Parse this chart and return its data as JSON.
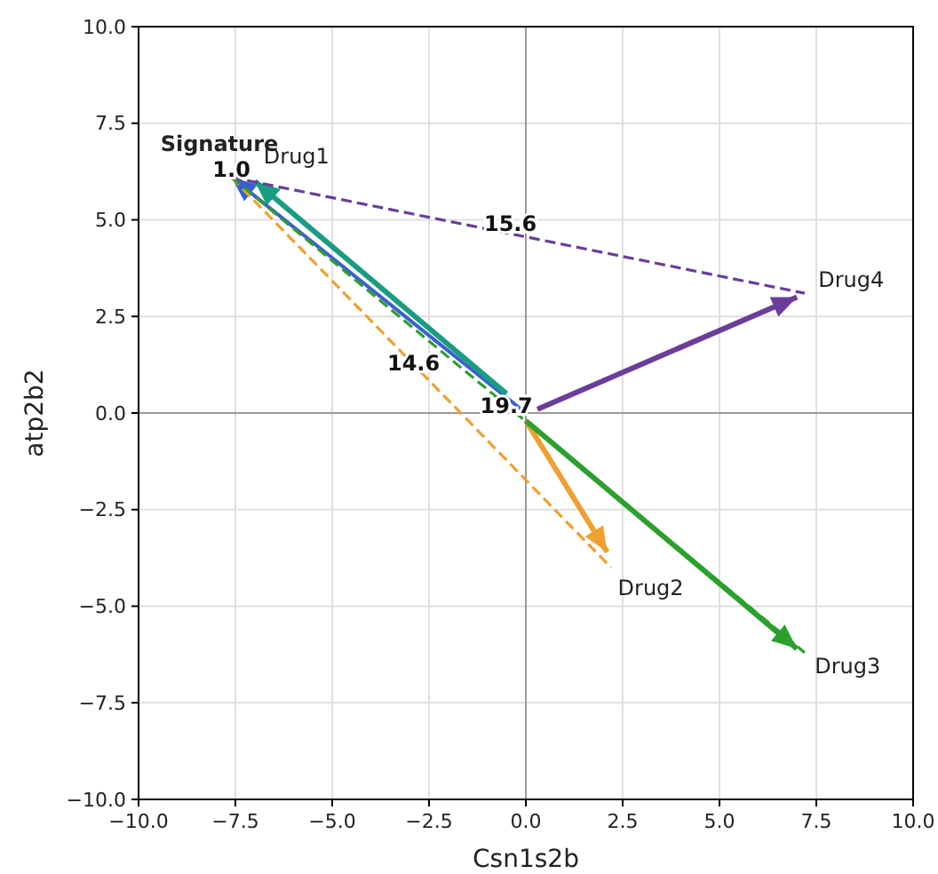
{
  "chart_data": {
    "type": "line",
    "xlabel": "Csn1s2b",
    "ylabel": "atp2b2",
    "xlim": [
      -10,
      10
    ],
    "ylim": [
      -10,
      10
    ],
    "xticks": [
      {
        "value": -10,
        "label": "−10.0"
      },
      {
        "value": -7.5,
        "label": "−7.5"
      },
      {
        "value": -5,
        "label": "−5.0"
      },
      {
        "value": -2.5,
        "label": "−2.5"
      },
      {
        "value": 0,
        "label": "0.0"
      },
      {
        "value": 2.5,
        "label": "2.5"
      },
      {
        "value": 5,
        "label": "5.0"
      },
      {
        "value": 7.5,
        "label": "7.5"
      },
      {
        "value": 10,
        "label": "10.0"
      }
    ],
    "yticks": [
      {
        "value": -10,
        "label": "−10.0"
      },
      {
        "value": -7.5,
        "label": "−7.5"
      },
      {
        "value": -5,
        "label": "−5.0"
      },
      {
        "value": -2.5,
        "label": "−2.5"
      },
      {
        "value": 0,
        "label": "0.0"
      },
      {
        "value": 2.5,
        "label": "2.5"
      },
      {
        "value": 5,
        "label": "5.0"
      },
      {
        "value": 7.5,
        "label": "7.5"
      },
      {
        "value": 10,
        "label": "10.0"
      }
    ],
    "grid": true,
    "series": [
      {
        "name": "Signature",
        "color": "#3b5fd0",
        "line_style": "solid",
        "x": [
          0,
          -7.6
        ],
        "values": [
          0,
          6.1
        ]
      },
      {
        "name": "Drug1",
        "color": "#1a9c82",
        "line_style": "solid",
        "x": [
          -0.5,
          -7.0
        ],
        "values": [
          0.5,
          6.0
        ]
      },
      {
        "name": "Drug2",
        "color": "#f0a030",
        "line_style": "solid",
        "x": [
          0,
          2.1
        ],
        "values": [
          -0.2,
          -3.6
        ]
      },
      {
        "name": "Drug3",
        "color": "#2ca02c",
        "line_style": "solid",
        "x": [
          0,
          7.0
        ],
        "values": [
          -0.2,
          -6.1
        ]
      },
      {
        "name": "Drug4",
        "color": "#6a3d9a",
        "line_style": "solid",
        "x": [
          0.3,
          7.0
        ],
        "values": [
          0.1,
          3.0
        ]
      },
      {
        "color": "#6a3d9a",
        "line_style": "dashed",
        "x": [
          -7.6,
          7.2
        ],
        "values": [
          6.1,
          3.1
        ]
      },
      {
        "color": "#f0a030",
        "line_style": "dashed",
        "x": [
          -7.6,
          2.2
        ],
        "values": [
          6.1,
          -4.0
        ]
      },
      {
        "color": "#2ca02c",
        "line_style": "dashed",
        "x": [
          -7.6,
          7.2
        ],
        "values": [
          6.1,
          -6.2
        ]
      }
    ],
    "annotations": [
      {
        "text": "1.0",
        "x": -7.6,
        "y": 6.3
      },
      {
        "text": "15.6",
        "x": -0.4,
        "y": 4.9
      },
      {
        "text": "14.6",
        "x": -2.9,
        "y": 1.3
      },
      {
        "text": "19.7",
        "x": -0.5,
        "y": 0.2
      }
    ]
  }
}
